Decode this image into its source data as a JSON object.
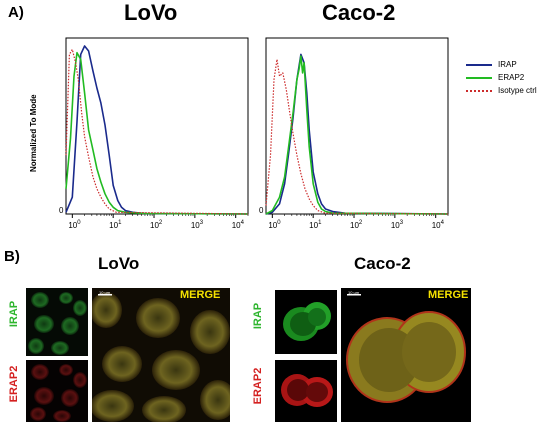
{
  "panel_a": {
    "label": "A)",
    "ylabel": "Normalized To Mode",
    "lovo_title": "LoVo",
    "caco_title": "Caco-2",
    "legend": [
      {
        "name": "IRAP",
        "color": "#1a2a8c",
        "style": "solid"
      },
      {
        "name": "ERAP2",
        "color": "#22bb22",
        "style": "solid"
      },
      {
        "name": "Isotype ctrl",
        "color": "#cc2b2b",
        "style": "dotted"
      }
    ]
  },
  "panel_b": {
    "label": "B)",
    "lovo_title": "LoVo",
    "caco_title": "Caco-2",
    "irap_label": "IRAP",
    "erap2_label": "ERAP2",
    "merge_label": "MERGE",
    "scale_label": "10 µm"
  },
  "colors": {
    "irap": "#1a2a8c",
    "erap2": "#22bb22",
    "isotype": "#cc2b2b",
    "merge": "#f5e200",
    "label_green": "#2db52d",
    "label_red": "#d42020"
  },
  "chart_data": [
    {
      "type": "line",
      "title": "LoVo",
      "ylabel": "Normalized To Mode",
      "x_scale": "log",
      "xlim": [
        0.7,
        20000
      ],
      "x_ticks": [
        "10^0",
        "10^1",
        "10^2",
        "10^3",
        "10^4"
      ],
      "y_ticks": [
        "0"
      ],
      "series": [
        {
          "name": "IRAP",
          "x": [
            0.7,
            1.0,
            1.3,
            1.6,
            2.0,
            2.5,
            3.2,
            4.0,
            5.0,
            6.3,
            8.0,
            10,
            13,
            16,
            20,
            30,
            60,
            20000
          ],
          "y": [
            0.01,
            0.1,
            0.55,
            0.95,
            1.0,
            0.97,
            0.85,
            0.75,
            0.66,
            0.53,
            0.35,
            0.17,
            0.08,
            0.04,
            0.02,
            0.01,
            0.003,
            0
          ]
        },
        {
          "name": "ERAP2",
          "x": [
            0.7,
            0.9,
            1.1,
            1.3,
            1.6,
            2.0,
            2.5,
            3.2,
            4.0,
            5.0,
            6.3,
            8.0,
            10,
            13,
            20,
            60,
            20000
          ],
          "y": [
            0.15,
            0.45,
            0.82,
            0.96,
            0.92,
            0.72,
            0.5,
            0.38,
            0.27,
            0.19,
            0.12,
            0.07,
            0.04,
            0.02,
            0.01,
            0.003,
            0
          ]
        },
        {
          "name": "Isotype ctrl",
          "x": [
            0.7,
            0.85,
            1.0,
            1.2,
            1.4,
            1.7,
            2.0,
            2.5,
            3.2,
            4.0,
            5.0,
            6.3,
            8.0,
            12,
            20000
          ],
          "y": [
            0.35,
            0.95,
            0.98,
            0.9,
            0.8,
            0.6,
            0.46,
            0.34,
            0.22,
            0.15,
            0.1,
            0.06,
            0.03,
            0.01,
            0
          ]
        }
      ]
    },
    {
      "type": "line",
      "title": "Caco-2",
      "x_scale": "log",
      "xlim": [
        0.7,
        20000
      ],
      "x_ticks": [
        "10^0",
        "10^1",
        "10^2",
        "10^3",
        "10^4"
      ],
      "y_ticks": [
        "0"
      ],
      "series": [
        {
          "name": "IRAP",
          "x": [
            0.7,
            1.0,
            1.5,
            2.0,
            2.5,
            3.2,
            4.0,
            5.0,
            6.0,
            7.0,
            8.0,
            10,
            13,
            16,
            20,
            30,
            60,
            20000
          ],
          "y": [
            0,
            0.01,
            0.06,
            0.18,
            0.36,
            0.57,
            0.8,
            0.95,
            0.9,
            0.72,
            0.5,
            0.25,
            0.12,
            0.06,
            0.03,
            0.015,
            0.005,
            0
          ]
        },
        {
          "name": "ERAP2",
          "x": [
            0.7,
            1.0,
            1.5,
            2.0,
            2.5,
            3.2,
            4.0,
            4.5,
            5.0,
            5.5,
            6.0,
            7.0,
            8.0,
            10,
            13,
            16,
            20,
            30,
            20000
          ],
          "y": [
            0,
            0.02,
            0.1,
            0.22,
            0.4,
            0.6,
            0.8,
            0.86,
            0.94,
            0.84,
            0.9,
            0.62,
            0.4,
            0.18,
            0.07,
            0.03,
            0.015,
            0.005,
            0
          ]
        },
        {
          "name": "Isotype ctrl",
          "x": [
            0.7,
            0.9,
            1.1,
            1.3,
            1.5,
            1.8,
            2.2,
            2.6,
            3.2,
            4.0,
            5.0,
            6.3,
            8.0,
            10,
            13,
            20,
            20000
          ],
          "y": [
            0.05,
            0.35,
            0.8,
            0.92,
            0.82,
            0.84,
            0.74,
            0.62,
            0.48,
            0.35,
            0.24,
            0.15,
            0.09,
            0.05,
            0.02,
            0.005,
            0
          ]
        }
      ]
    }
  ]
}
